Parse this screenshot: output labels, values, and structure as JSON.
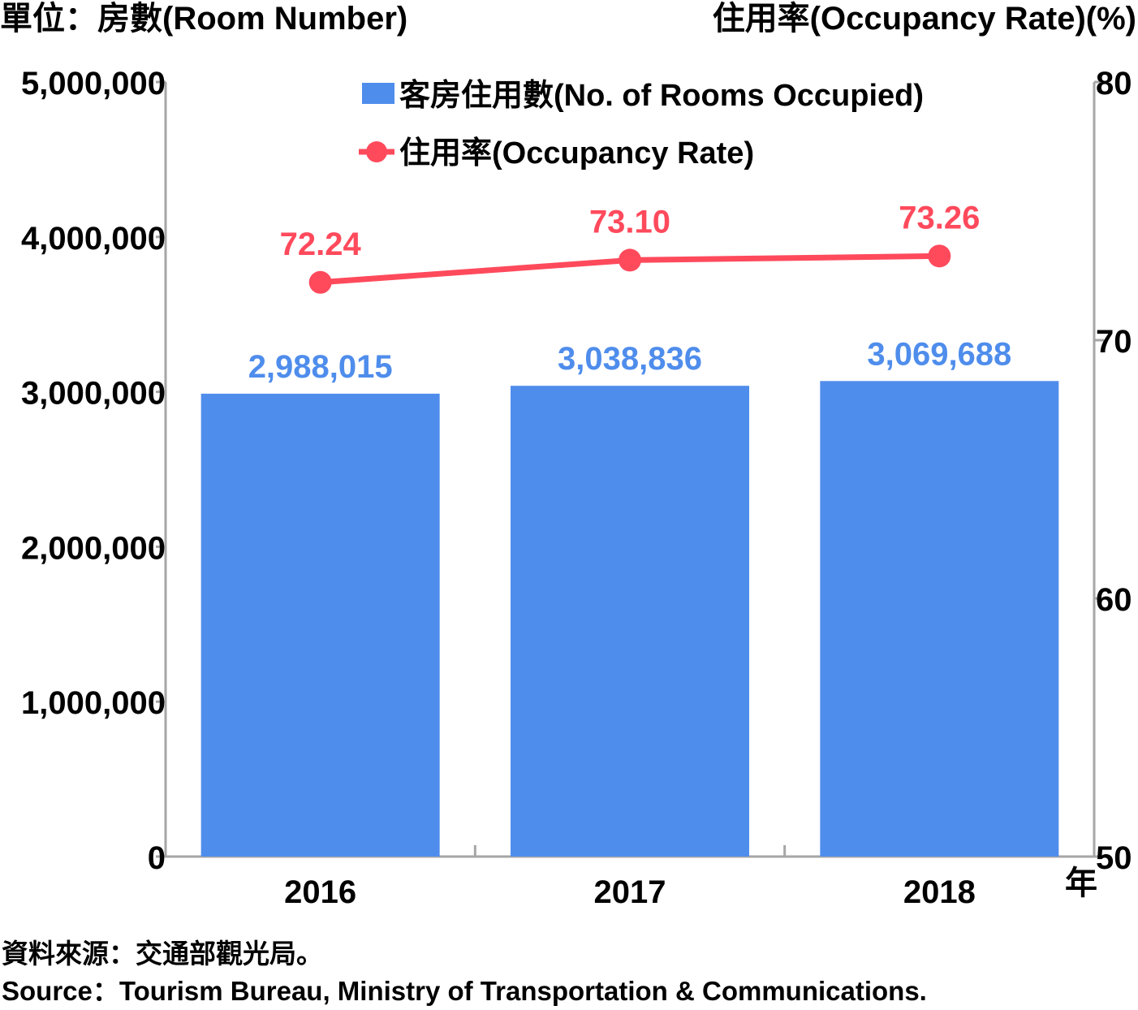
{
  "header": {
    "left_unit": "單位：房數(Room Number)",
    "right_unit": "住用率(Occupancy Rate)(%)"
  },
  "chart_data": {
    "type": "bar",
    "categories": [
      "2016",
      "2017",
      "2018"
    ],
    "x_unit": "年",
    "series": [
      {
        "name": "客房住用數(No. of Rooms Occupied)",
        "type": "bar",
        "axis": "left",
        "values": [
          2988015,
          3038836,
          3069688
        ],
        "labels": [
          "2,988,015",
          "3,038,836",
          "3,069,688"
        ],
        "color": "#4f8dec"
      },
      {
        "name": "住用率(Occupancy Rate)",
        "type": "line",
        "axis": "right",
        "values": [
          72.24,
          73.1,
          73.26
        ],
        "labels": [
          "72.24",
          "73.10",
          "73.26"
        ],
        "color": "#ff4a5c"
      }
    ],
    "y_left": {
      "range": [
        0,
        5000000
      ],
      "ticks": [
        0,
        1000000,
        2000000,
        3000000,
        4000000,
        5000000
      ],
      "tick_labels": [
        "0",
        "1,000,000",
        "2,000,000",
        "3,000,000",
        "4,000,000",
        "5,000,000"
      ]
    },
    "y_right": {
      "range": [
        50,
        80
      ],
      "ticks": [
        50,
        60,
        70,
        80
      ],
      "tick_labels": [
        "50",
        "60",
        "70",
        "80"
      ]
    },
    "legend_position": "top-center",
    "grid": false
  },
  "source": {
    "zh": "資料來源：交通部觀光局。",
    "en": "Source：Tourism Bureau, Ministry of Transportation & Communications."
  },
  "colors": {
    "axis": "#a6a6a6",
    "bar": "#4f8dec",
    "line": "#ff4a5c"
  }
}
